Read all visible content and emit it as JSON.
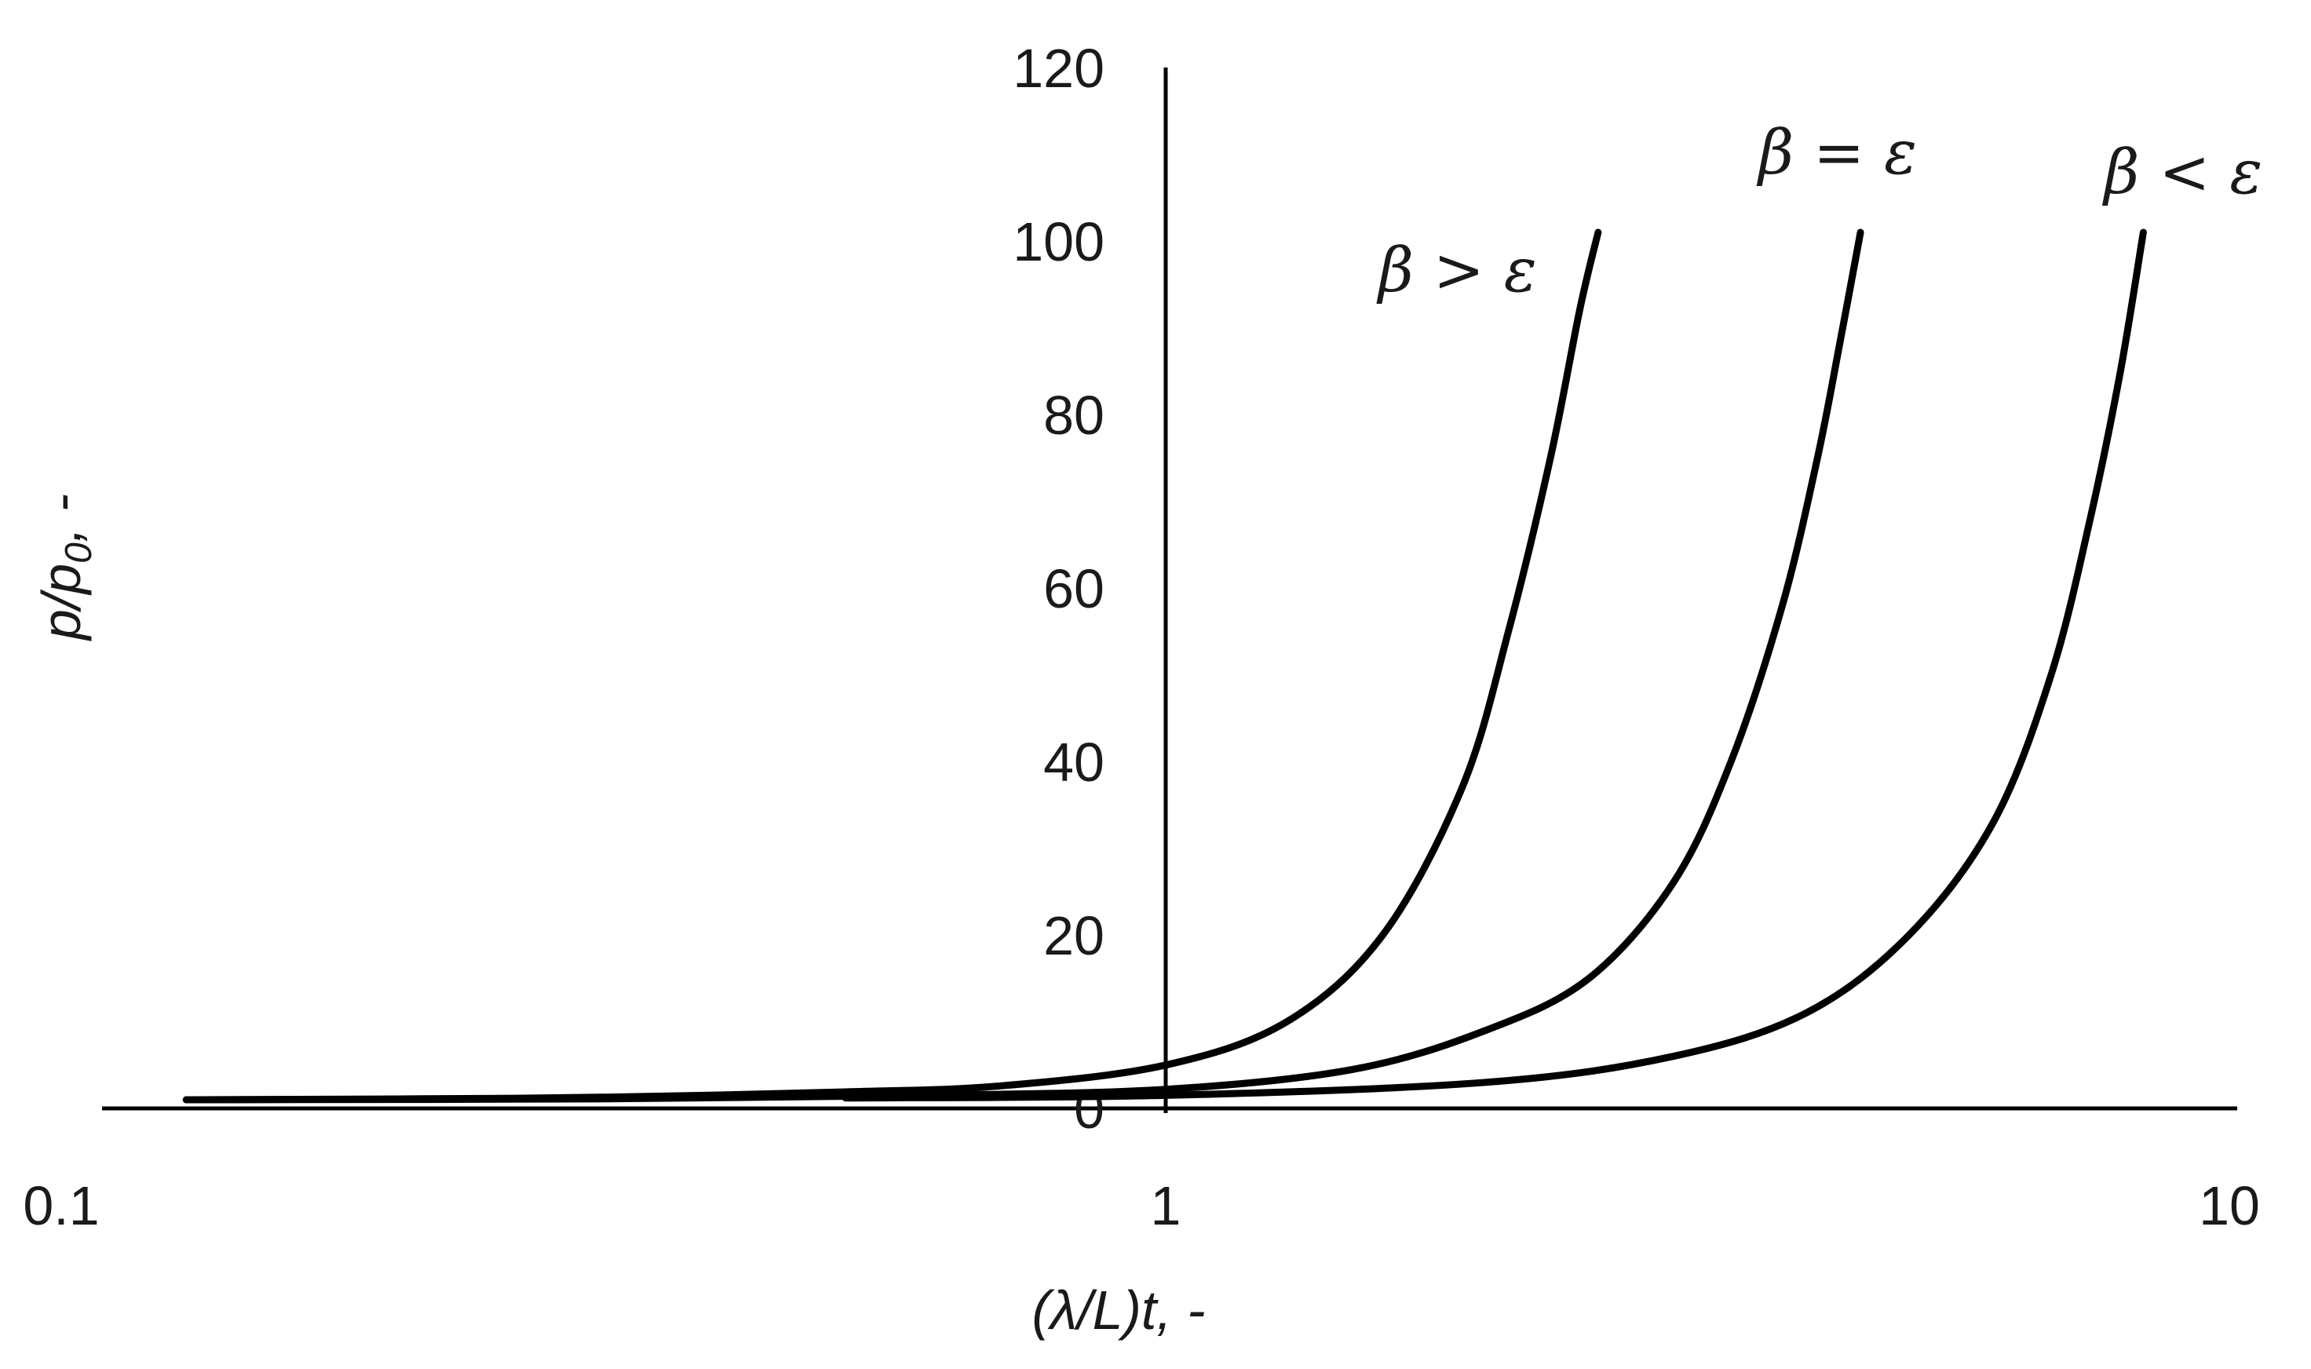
{
  "chart_data": {
    "type": "line",
    "title": "",
    "xlabel": "(λ/L)t, -",
    "ylabel_parts": {
      "main": "p/p",
      "sub": "0",
      "suffix": ", -"
    },
    "x_scale": "log",
    "xlim": [
      0.1,
      10
    ],
    "ylim": [
      0,
      120
    ],
    "x_ticks": [
      {
        "value": 0.1,
        "label": "0.1"
      },
      {
        "value": 1,
        "label": "1"
      },
      {
        "value": 10,
        "label": "10"
      }
    ],
    "y_ticks": [
      {
        "value": 0,
        "label": "0"
      },
      {
        "value": 20,
        "label": "20"
      },
      {
        "value": 40,
        "label": "40"
      },
      {
        "value": 60,
        "label": "60"
      },
      {
        "value": 80,
        "label": "80"
      },
      {
        "value": 100,
        "label": "100"
      },
      {
        "value": 120,
        "label": "120"
      }
    ],
    "grid": false,
    "legend": "none",
    "series": [
      {
        "annotation": "β > ε",
        "color": "#000000",
        "x": [
          0.12,
          0.2,
          0.3,
          0.5,
          0.7,
          1.0,
          1.3,
          1.6,
          1.9,
          2.1,
          2.3,
          2.45,
          2.55
        ],
        "y": [
          1.0,
          1.1,
          1.3,
          1.9,
          2.6,
          5.0,
          10.0,
          20.0,
          37.0,
          55.0,
          75.0,
          92.0,
          101.0
        ]
      },
      {
        "annotation": "β = ε",
        "color": "#000000",
        "x": [
          0.12,
          0.3,
          0.6,
          1.0,
          1.5,
          2.0,
          2.5,
          3.0,
          3.4,
          3.8,
          4.1,
          4.3,
          4.5
        ],
        "y": [
          1.0,
          1.1,
          1.5,
          2.2,
          4.5,
          9.0,
          15.0,
          26.0,
          40.0,
          58.0,
          75.0,
          88.0,
          101.0
        ]
      },
      {
        "annotation": "β < ε",
        "color": "#000000",
        "x": [
          0.5,
          1.0,
          2.0,
          3.0,
          4.0,
          5.0,
          6.0,
          6.8,
          7.4,
          7.9,
          8.3
        ],
        "y": [
          1.2,
          1.5,
          3.0,
          6.0,
          11.0,
          20.0,
          33.0,
          50.0,
          68.0,
          85.0,
          101.0
        ]
      }
    ]
  }
}
